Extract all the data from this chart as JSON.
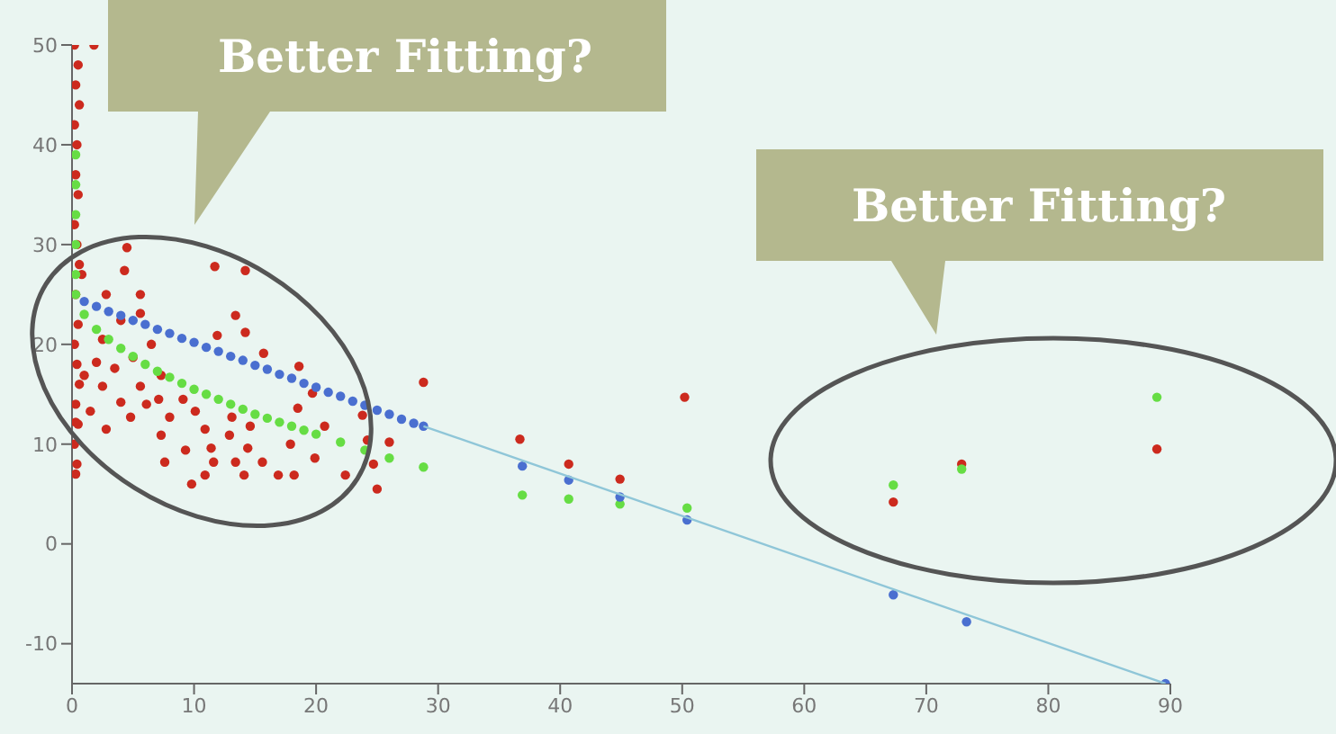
{
  "chart_data": {
    "type": "scatter",
    "marker": "circle",
    "grid": false,
    "legend": false,
    "xlim": [
      0,
      90
    ],
    "xticks": [
      0,
      10,
      20,
      30,
      40,
      50,
      60,
      70,
      80,
      90
    ],
    "ylim": [
      -14,
      50
    ],
    "yticks": [
      -10,
      0,
      10,
      20,
      30,
      40,
      50
    ],
    "annotations": [
      "Better Fitting?",
      "Better Fitting?"
    ],
    "series": [
      {
        "color": "#cc2a1e",
        "x": [
          0.2,
          0.5,
          0.3,
          0.6,
          0.2,
          0.4,
          0.3,
          0.5,
          0.2,
          0.4,
          0.6,
          0.3,
          0.5,
          0.2,
          0.4,
          0.6,
          0.3,
          0.5,
          0.2,
          0.4,
          0.3,
          1.8,
          4.5,
          4.3,
          11.7,
          14.2,
          2.8,
          5.6,
          13.4,
          14.2,
          11.9,
          15.7,
          18.6,
          19.7,
          18.5,
          28.8,
          23.8,
          20.7,
          24.2,
          26,
          24.7,
          25,
          22.4,
          19.9,
          17.9,
          18.2,
          16.9,
          15.6,
          14.4,
          14.1,
          13.4,
          11.6,
          10.9,
          9.8,
          7.6,
          9.3,
          11.4,
          12.9,
          14.6,
          13.1,
          10.9,
          7.3,
          2.8,
          4.8,
          6.1,
          9.1,
          8,
          10.1,
          7.1,
          5.6,
          4,
          2.5,
          1.5,
          1,
          2,
          3.5,
          5,
          6.5,
          7.3,
          5.6,
          4,
          2.5,
          0.8,
          0.3,
          36.7,
          40.7,
          44.9,
          50.2,
          67.3,
          72.9,
          88.9
        ],
        "values": [
          50,
          48,
          46,
          44,
          42,
          40,
          37,
          35,
          32,
          30,
          28,
          25,
          22,
          20,
          18,
          16,
          14,
          12,
          10,
          8,
          7,
          50,
          29.7,
          27.4,
          27.8,
          27.4,
          25,
          25,
          22.9,
          21.2,
          20.9,
          19.1,
          17.8,
          15.1,
          13.6,
          16.2,
          12.9,
          11.8,
          10.4,
          10.2,
          8,
          5.5,
          6.9,
          8.6,
          10,
          6.9,
          6.9,
          8.2,
          9.6,
          6.9,
          8.2,
          8.2,
          6.9,
          6,
          8.2,
          9.4,
          9.6,
          10.9,
          11.8,
          12.7,
          11.5,
          10.9,
          11.5,
          12.7,
          14,
          14.5,
          12.7,
          13.3,
          14.5,
          15.8,
          14.2,
          15.8,
          13.3,
          16.9,
          18.2,
          17.6,
          18.7,
          20,
          16.9,
          23.1,
          22.4,
          20.5,
          27,
          12.2,
          10.5,
          8,
          6.5,
          14.7,
          4.2,
          8,
          9.5
        ]
      },
      {
        "color": "#66dd44",
        "x": [
          0.3,
          0.3,
          0.3,
          0.3,
          0.3,
          0.3,
          1,
          2,
          3,
          4,
          5,
          6,
          7,
          8,
          9,
          10,
          11,
          12,
          13,
          14,
          15,
          16,
          17,
          18,
          19,
          20,
          22,
          24,
          26,
          28.8,
          36.9,
          40.7,
          44.9,
          50.4,
          67.3,
          72.9,
          88.9
        ],
        "values": [
          39,
          36,
          33,
          30,
          27,
          25,
          23,
          21.5,
          20.5,
          19.6,
          18.8,
          18,
          17.3,
          16.7,
          16.1,
          15.5,
          15,
          14.5,
          14,
          13.5,
          13,
          12.6,
          12.2,
          11.8,
          11.4,
          11,
          10.2,
          9.4,
          8.6,
          7.7,
          4.9,
          4.5,
          4,
          3.6,
          5.9,
          7.5,
          14.7
        ]
      },
      {
        "color": "#4a6fd0",
        "x": [
          1,
          2,
          3,
          4,
          5,
          6,
          7,
          8,
          9,
          10,
          11,
          12,
          13,
          14,
          15,
          16,
          17,
          18,
          19,
          20,
          21,
          22,
          23,
          24,
          25,
          26,
          27,
          28,
          28.8,
          36.9,
          40.7,
          44.9,
          50.4,
          67.3,
          73.3,
          89.6
        ],
        "values": [
          24.3,
          23.8,
          23.3,
          22.9,
          22.4,
          22,
          21.5,
          21.1,
          20.6,
          20.2,
          19.7,
          19.3,
          18.8,
          18.4,
          17.9,
          17.5,
          17,
          16.6,
          16.1,
          15.7,
          15.2,
          14.8,
          14.3,
          13.9,
          13.4,
          13,
          12.5,
          12.1,
          11.8,
          7.8,
          6.4,
          4.7,
          2.4,
          -5.1,
          -7.8,
          -14
        ]
      },
      {
        "type": "line",
        "marker": "none",
        "color": "#8fc6d8",
        "x": [
          28.8,
          89.6
        ],
        "values": [
          11.8,
          -14
        ]
      }
    ]
  }
}
